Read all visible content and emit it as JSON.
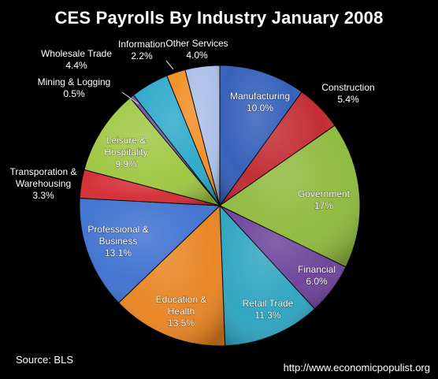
{
  "title": "CES Payrolls By Industry January 2008",
  "source": "Source:  BLS",
  "website": "http://www.economicpopulist.org",
  "chart_data": {
    "type": "pie",
    "title": "CES Payrolls By Industry January 2008",
    "slices": [
      {
        "name": "Manufacturing",
        "label": "Manufacturing",
        "value_label": "10.0%",
        "value": 10.0,
        "color": "#2f5bb7",
        "inside": true
      },
      {
        "name": "Construction",
        "label": "Construction",
        "value_label": "5.4%",
        "value": 5.4,
        "color": "#c0262d",
        "inside": false
      },
      {
        "name": "Government",
        "label": "Government",
        "value_label": "17%",
        "value": 17.0,
        "color": "#8db83a",
        "inside": true
      },
      {
        "name": "Financial",
        "label": "Financial",
        "value_label": "6.0%",
        "value": 6.0,
        "color": "#6a3f98",
        "inside": true
      },
      {
        "name": "Retail Trade",
        "label": "Retail Trade",
        "value_label": "11.3%",
        "value": 11.3,
        "color": "#2aa3bf",
        "inside": true
      },
      {
        "name": "Education & Health",
        "label": "Education &\nHealth",
        "value_label": "13.5%",
        "value": 13.5,
        "color": "#e8821e",
        "inside": true
      },
      {
        "name": "Professional & Business",
        "label": "Professional &\nBusiness",
        "value_label": "13.1%",
        "value": 13.1,
        "color": "#3c6fcf",
        "inside": true
      },
      {
        "name": "Transporation & Warehousing",
        "label": "Transporation &\nWarehousing",
        "value_label": "3.3%",
        "value": 3.3,
        "color": "#d4282f",
        "inside": false
      },
      {
        "name": "Leisure & Hospitality",
        "label": "Leisure &\nHospitality",
        "value_label": "9.9%",
        "value": 9.9,
        "color": "#9dc63f",
        "inside": true
      },
      {
        "name": "Mining & Logging",
        "label": "Mining & Logging",
        "value_label": "0.5%",
        "value": 0.5,
        "color": "#6a52a6",
        "inside": false
      },
      {
        "name": "Wholesale Trade",
        "label": "Wholesale Trade",
        "value_label": "4.4%",
        "value": 4.4,
        "color": "#2aa7c9",
        "inside": false
      },
      {
        "name": "Information",
        "label": "Information",
        "value_label": "2.2%",
        "value": 2.2,
        "color": "#f08c1e",
        "inside": false
      },
      {
        "name": "Other Services",
        "label": "Other Services",
        "value_label": "4.0%",
        "value": 4.0,
        "color": "#a9bde6",
        "inside": false
      }
    ]
  }
}
